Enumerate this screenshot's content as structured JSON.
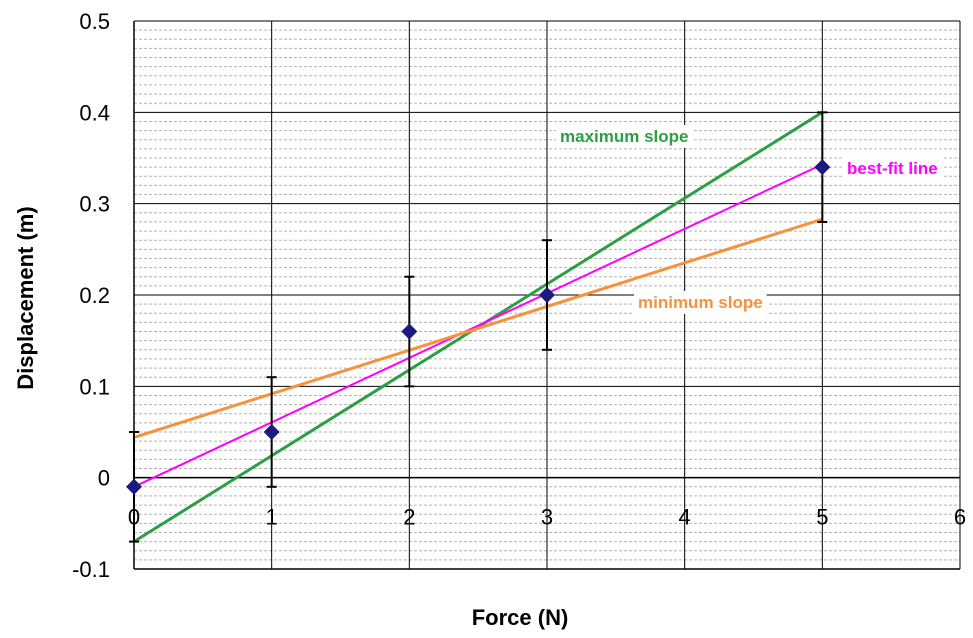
{
  "chart_data": {
    "type": "scatter",
    "title": "",
    "xlabel": "Force (N)",
    "ylabel": "Displacement  (m)",
    "xlim": [
      0,
      6
    ],
    "ylim": [
      -0.1,
      0.5
    ],
    "x_ticks": [
      "0",
      "1",
      "2",
      "3",
      "4",
      "5",
      "6"
    ],
    "y_ticks": [
      "-0.1",
      "0",
      "0.1",
      "0.2",
      "0.3",
      "0.4",
      "0.5"
    ],
    "grid": true,
    "series": [
      {
        "color": "#1a1a80",
        "marker": "diamond",
        "points": [
          {
            "x": 0,
            "y": -0.01,
            "err": 0.06
          },
          {
            "x": 1,
            "y": 0.05,
            "err": 0.06
          },
          {
            "x": 2,
            "y": 0.16,
            "err": 0.06
          },
          {
            "x": 3,
            "y": 0.2,
            "err": 0.06
          },
          {
            "x": 5,
            "y": 0.34,
            "err": 0.06
          }
        ]
      }
    ],
    "lines": [
      {
        "label": "maximum slope",
        "color": "#2e9e44",
        "x": [
          0,
          5
        ],
        "y": [
          -0.07,
          0.4
        ]
      },
      {
        "label": "best-fit line",
        "color": "#ff00ff",
        "x": [
          0,
          5
        ],
        "y": [
          -0.01,
          0.343
        ]
      },
      {
        "label": "minimum slope",
        "color": "#f7913b",
        "x": [
          0,
          5
        ],
        "y": [
          0.044,
          0.283
        ]
      }
    ]
  }
}
